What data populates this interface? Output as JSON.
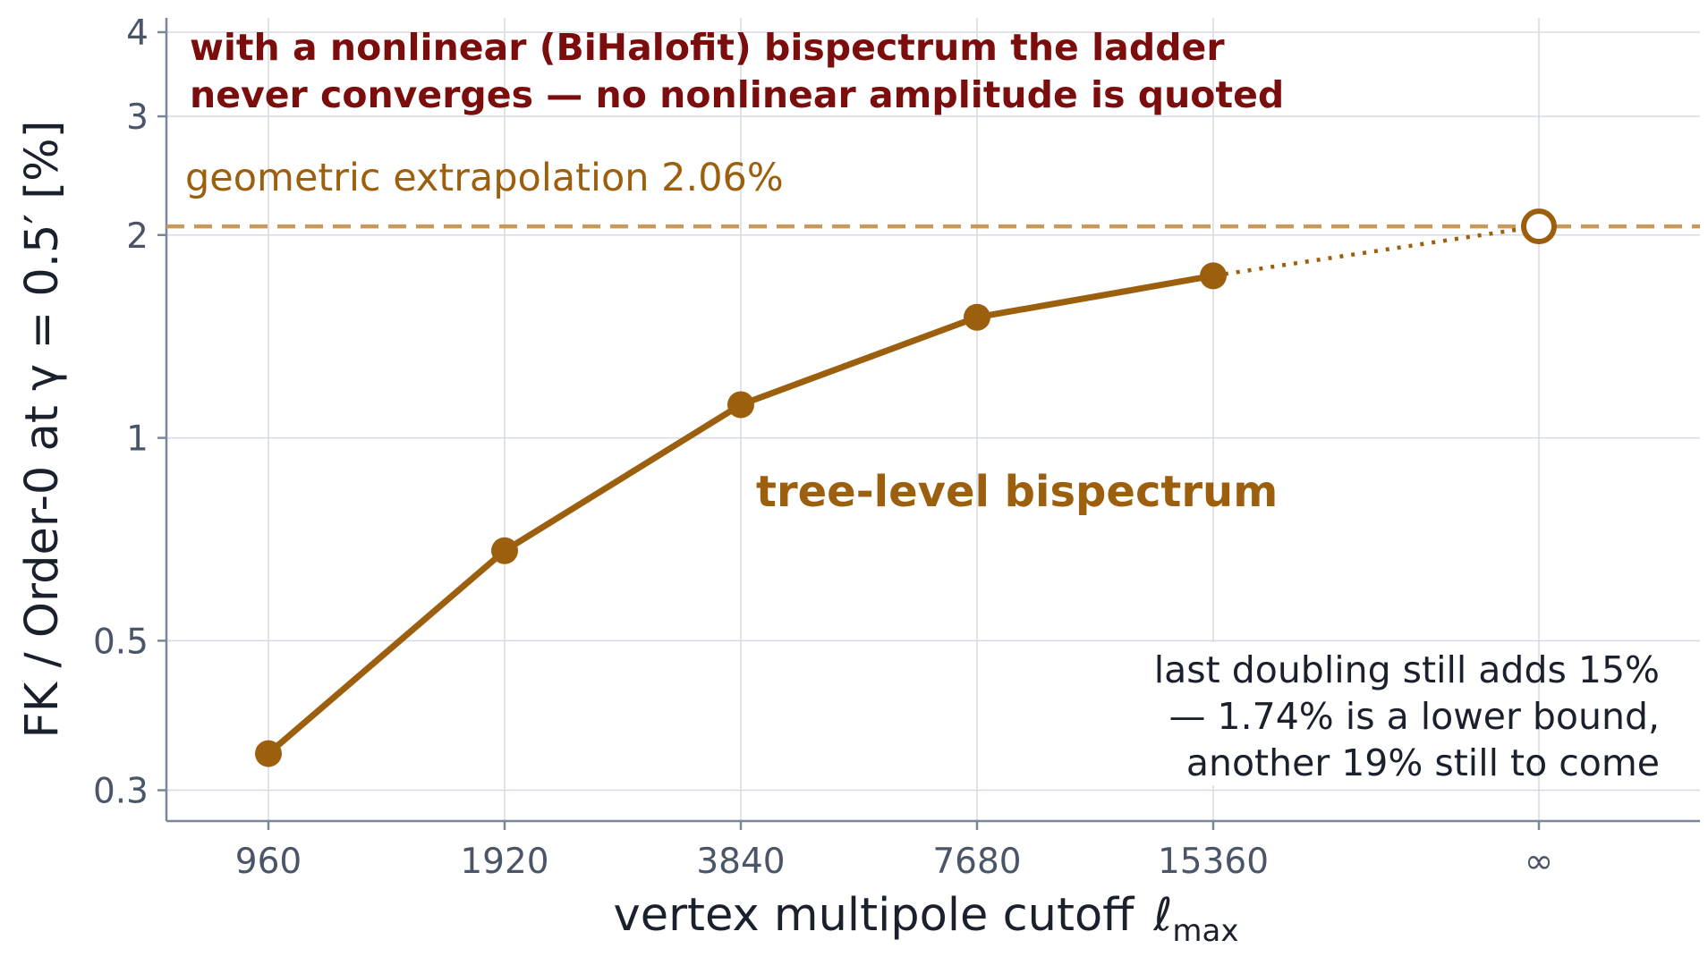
{
  "chart_data": {
    "type": "line",
    "y_scale": "log",
    "ylim": [
      0.27,
      4.2
    ],
    "x_categories": [
      "960",
      "1920",
      "3840",
      "7680",
      "15360",
      "∞"
    ],
    "y_ticks": [
      {
        "value": 0.3,
        "label": "0.3"
      },
      {
        "value": 0.5,
        "label": "0.5"
      },
      {
        "value": 1,
        "label": "1"
      },
      {
        "value": 2,
        "label": "2"
      },
      {
        "value": 3,
        "label": "3"
      },
      {
        "value": 4,
        "label": "4"
      }
    ],
    "xlabel_main": "vertex multipole cutoff",
    "xlabel_ell": "ℓ",
    "xlabel_sub": "max",
    "ylabel": "FK / Order-0  at  γ = 0.5′   [%]",
    "series": [
      {
        "name": "tree-level bispectrum",
        "color": "#9c5f0e",
        "x": [
          "960",
          "1920",
          "3840",
          "7680",
          "15360"
        ],
        "values": [
          0.34,
          0.68,
          1.12,
          1.51,
          1.74
        ]
      }
    ],
    "extrapolation": {
      "value": 2.06,
      "x": "∞",
      "label": "geometric extrapolation  2.06%",
      "color": "#c9995a"
    },
    "annotations": {
      "warning_lines": [
        "with a nonlinear (BiHalofit) bispectrum the ladder",
        "never converges — no nonlinear amplitude is quoted"
      ],
      "note_lines": [
        "last doubling still adds 15%",
        "— 1.74% is a lower bound,",
        "another 19% still to come"
      ]
    },
    "grid": true,
    "colors": {
      "grid": "#d5dae3",
      "axis": "#7a8699",
      "warning": "#7b0d0d"
    }
  }
}
